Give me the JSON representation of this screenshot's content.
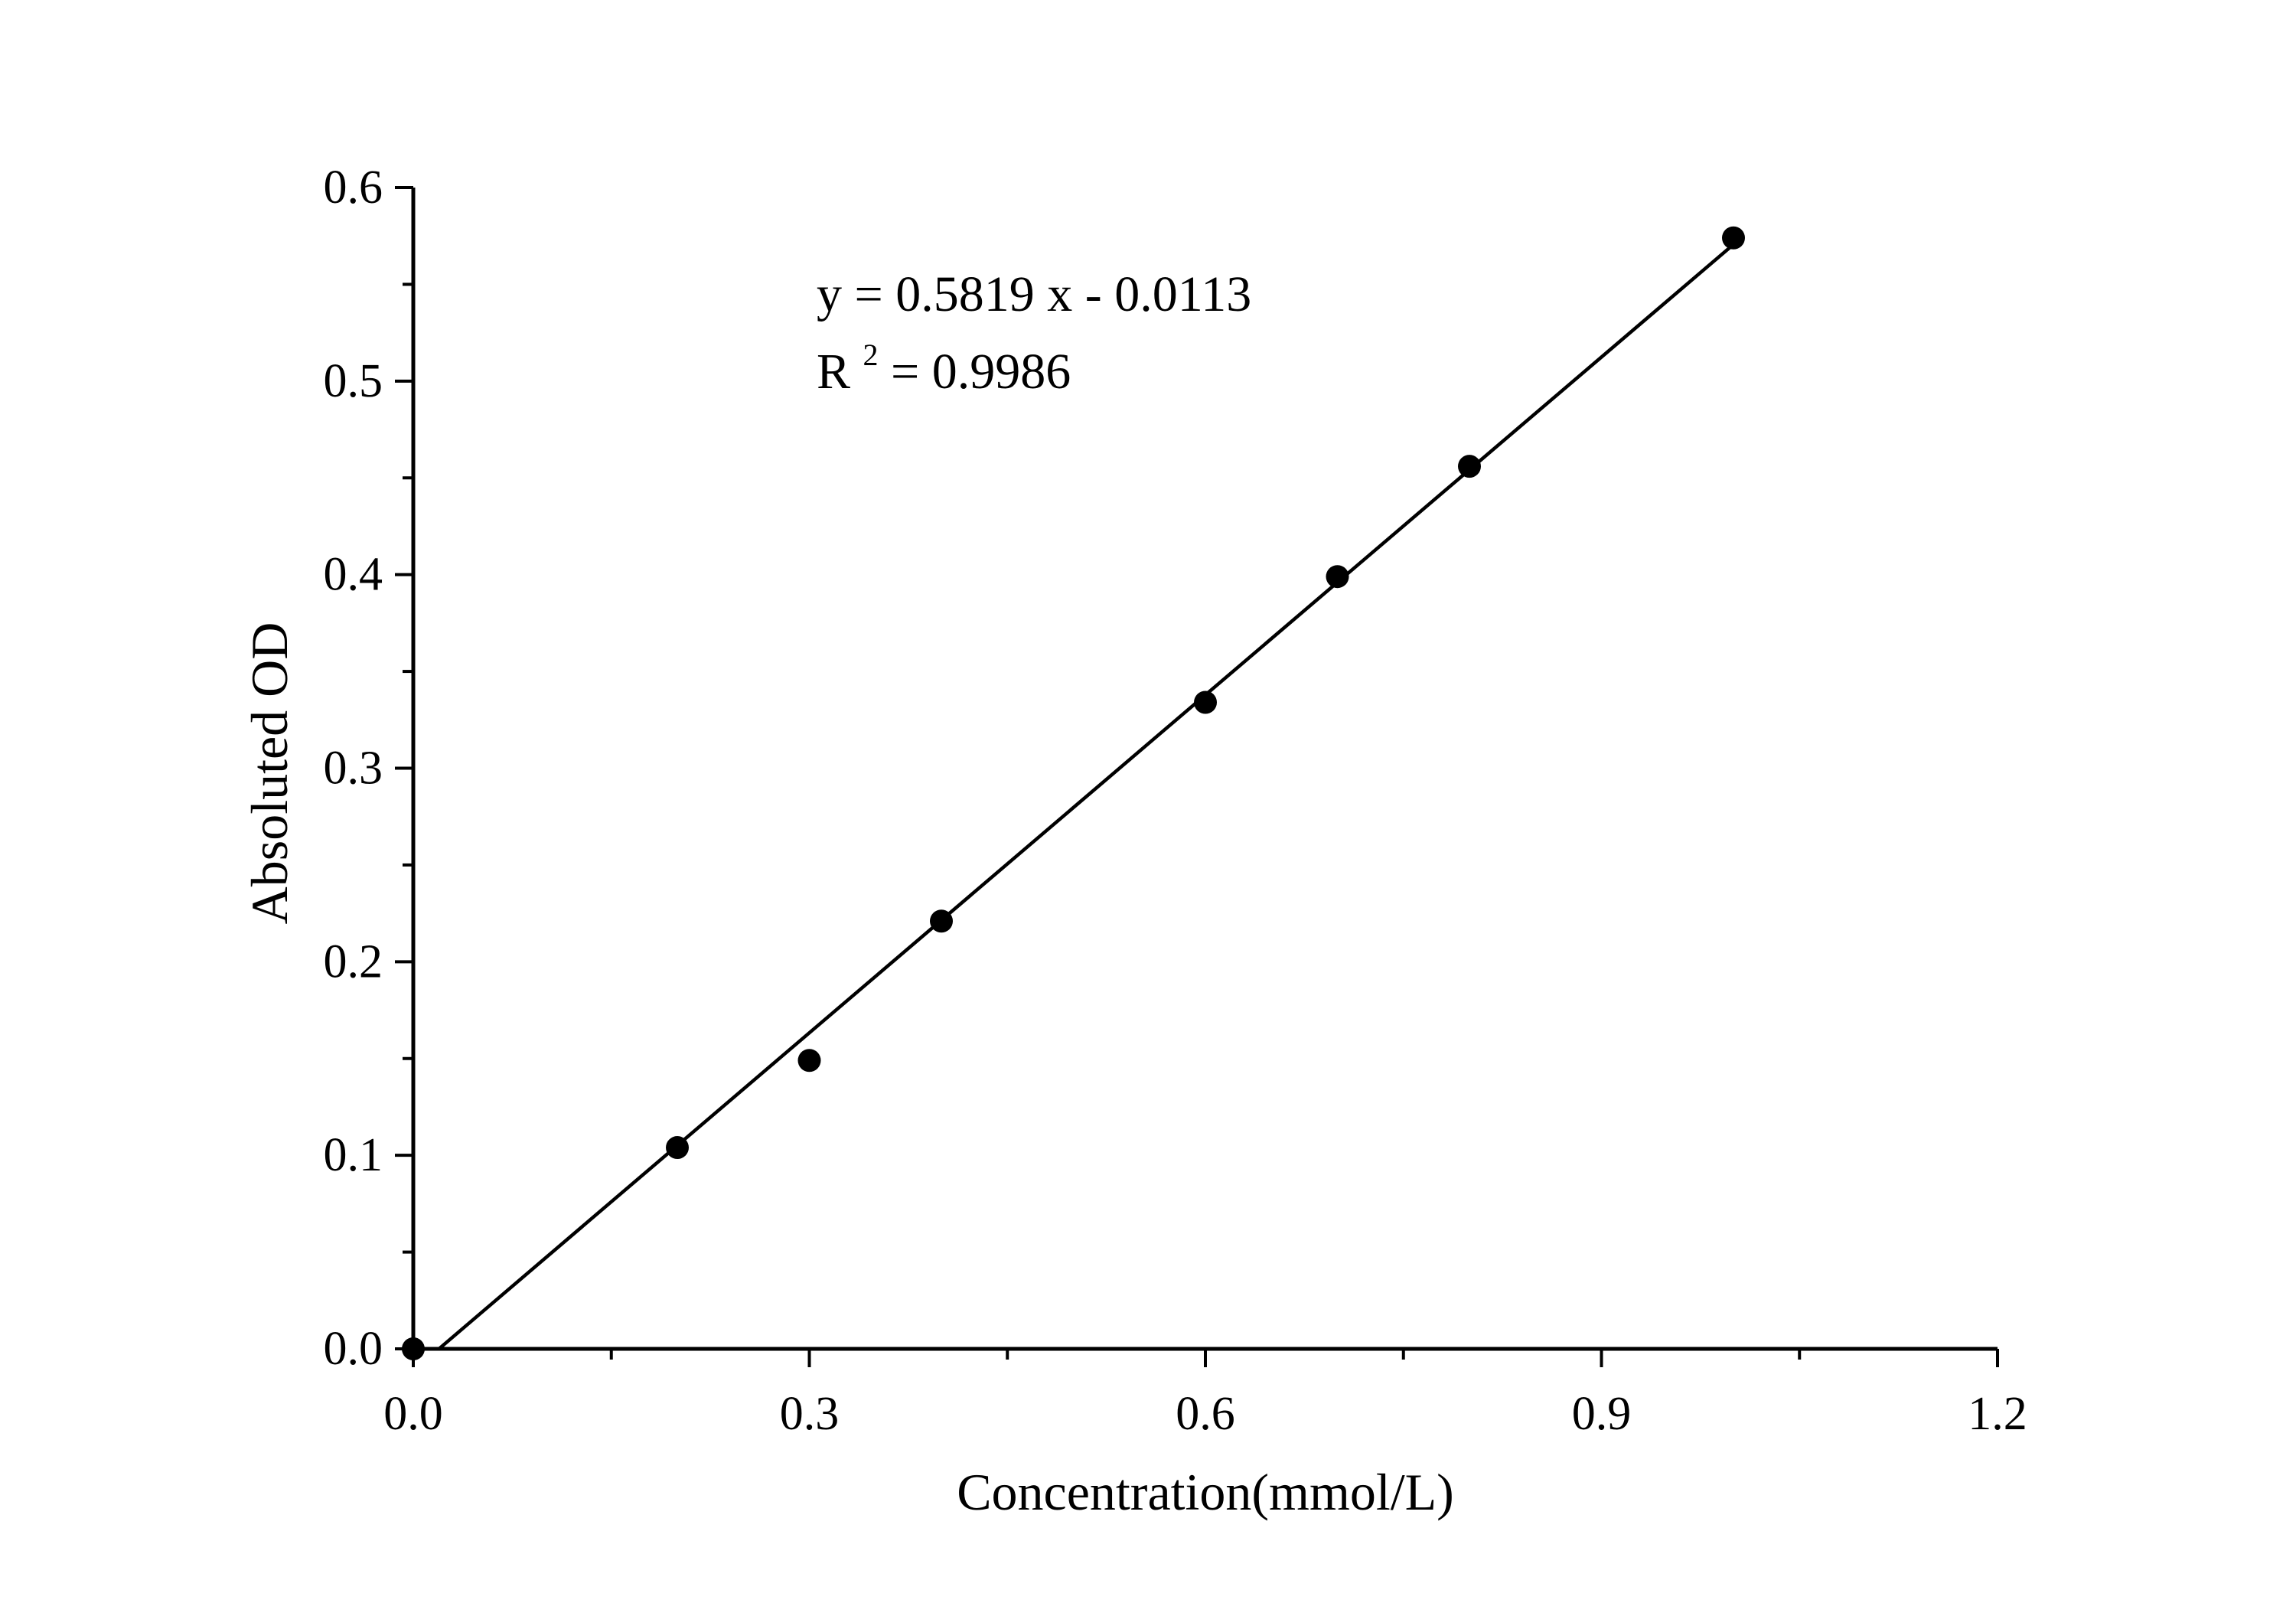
{
  "chart_data": {
    "type": "scatter",
    "title": "",
    "xlabel": "Concentration(mmol/L)",
    "ylabel": "Absoluted OD",
    "xlim": [
      0,
      1.2
    ],
    "ylim": [
      0,
      0.6
    ],
    "x_ticks": [
      "0.0",
      "0.3",
      "0.6",
      "0.9",
      "1.2"
    ],
    "y_ticks": [
      "0.0",
      "0.1",
      "0.2",
      "0.3",
      "0.4",
      "0.5",
      "0.6"
    ],
    "grid": false,
    "legend": "none",
    "series": [
      {
        "marker": "filled-circle",
        "color": "#000000",
        "x": [
          0,
          0.2,
          0.3,
          0.4,
          0.6,
          0.7,
          0.8,
          1.0
        ],
        "y": [
          0.0,
          0.104,
          0.149,
          0.221,
          0.334,
          0.399,
          0.456,
          0.574
        ]
      }
    ],
    "fit_line": {
      "slope": 0.5819,
      "intercept": -0.0113,
      "x_range": [
        0.0194,
        1.0
      ],
      "color": "#000000"
    },
    "annotations": {
      "equation": "y = 0.5819 x - 0.0113",
      "r2_prefix": "R",
      "r2_sup": "2",
      "r2_value": " = 0.9986"
    }
  }
}
